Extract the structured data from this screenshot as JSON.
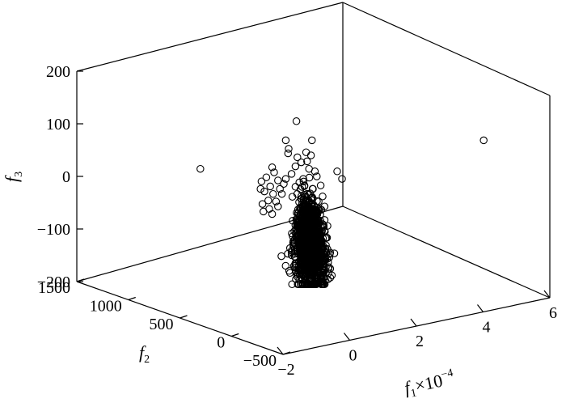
{
  "chart_data": {
    "type": "scatter3d",
    "xlabel": {
      "base": "f",
      "sub": "1",
      "times": "×",
      "power_base": "10",
      "power_exp": "−4"
    },
    "ylabel": {
      "base": "f",
      "sub": "2"
    },
    "zlabel": {
      "base": "f",
      "sub": "3"
    },
    "x_ticks": [
      {
        "v": -2,
        "label": "−2"
      },
      {
        "v": 0,
        "label": "0"
      },
      {
        "v": 2,
        "label": "2"
      },
      {
        "v": 4,
        "label": "4"
      },
      {
        "v": 6,
        "label": "6"
      }
    ],
    "y_ticks": [
      {
        "v": -500,
        "label": "−500"
      },
      {
        "v": 0,
        "label": "0"
      },
      {
        "v": 500,
        "label": "500"
      },
      {
        "v": 1000,
        "label": "1000"
      },
      {
        "v": 1500,
        "label": "1500"
      }
    ],
    "z_ticks": [
      {
        "v": -200,
        "label": "−200"
      },
      {
        "v": -100,
        "label": "−100"
      },
      {
        "v": 0,
        "label": "0"
      },
      {
        "v": 100,
        "label": "100"
      },
      {
        "v": 200,
        "label": "200"
      }
    ],
    "xlim": [
      -2,
      6
    ],
    "ylim": [
      -500,
      1500
    ],
    "zlim": [
      -200,
      200
    ],
    "grid": false,
    "marker": "open-circle",
    "points_f1_f3": [
      [
        -0.35,
        110
      ],
      [
        -0.9,
        72
      ],
      [
        -0.75,
        55
      ],
      [
        -0.78,
        46
      ],
      [
        0.45,
        72
      ],
      [
        0.15,
        48
      ],
      [
        0.4,
        42
      ],
      [
        -0.3,
        38
      ],
      [
        0.2,
        30
      ],
      [
        0.6,
        10
      ],
      [
        -0.4,
        20
      ],
      [
        -0.1,
        28
      ],
      [
        -1.5,
        8
      ],
      [
        -2.15,
        -10
      ],
      [
        -1.6,
        18
      ],
      [
        -1.9,
        -2
      ],
      [
        -1.3,
        -8
      ],
      [
        -1.7,
        -20
      ],
      [
        -2.0,
        -30
      ],
      [
        -1.55,
        -35
      ],
      [
        -2.2,
        -25
      ],
      [
        -1.8,
        -48
      ],
      [
        -2.1,
        -55
      ],
      [
        -1.4,
        -50
      ],
      [
        -1.2,
        -25
      ],
      [
        -1.0,
        -15
      ],
      [
        -1.75,
        -65
      ],
      [
        -2.05,
        -70
      ],
      [
        -1.6,
        -75
      ],
      [
        -1.3,
        -60
      ],
      [
        1.75,
        10
      ],
      [
        2.0,
        -5
      ],
      [
        -5.3,
        15
      ],
      [
        9.3,
        72
      ],
      [
        0.7,
        0
      ],
      [
        -0.6,
        5
      ],
      [
        0.0,
        -5
      ],
      [
        0.3,
        15
      ],
      [
        -0.2,
        -12
      ],
      [
        0.9,
        -18
      ],
      [
        -0.9,
        -5
      ],
      [
        0.5,
        -25
      ],
      [
        1.0,
        -40
      ],
      [
        1.1,
        -60
      ],
      [
        -1.1,
        -35
      ]
    ],
    "cluster": {
      "count": 1400,
      "f1_mean": 0.35,
      "f1_sd": 0.42,
      "f3_mean": -135,
      "f3_sd": 42,
      "f3_max": 35,
      "f3_min": -215,
      "tilt": 0.6
    }
  }
}
